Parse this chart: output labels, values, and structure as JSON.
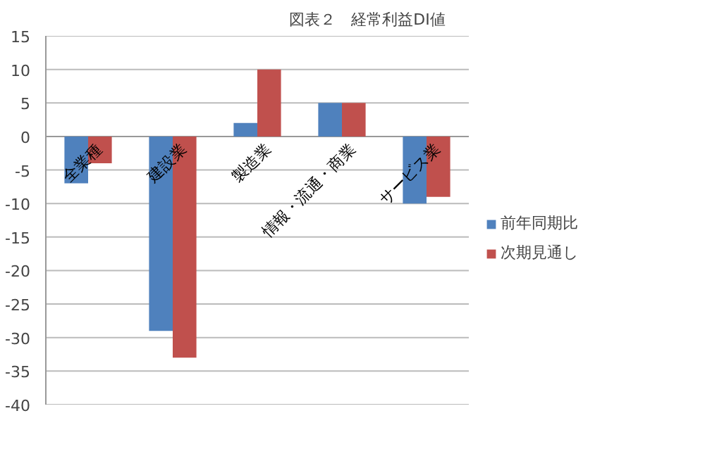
{
  "chart_data": {
    "type": "bar",
    "title": "図表２　経常利益DI値",
    "categories": [
      "全業種",
      "建設業",
      "製造業",
      "情報・流通・商業",
      "サービス業"
    ],
    "series": [
      {
        "name": "前年同期比",
        "color": "#4f81bd",
        "values": [
          -7,
          -29,
          2,
          5,
          -10
        ]
      },
      {
        "name": "次期見通し",
        "color": "#c0504d",
        "values": [
          -4,
          -33,
          10,
          5,
          -9
        ]
      }
    ],
    "ylim": [
      -40,
      15
    ],
    "yticks": [
      -40,
      -35,
      -30,
      -25,
      -20,
      -15,
      -10,
      -5,
      0,
      5,
      10,
      15
    ],
    "grid": "y",
    "legend": "right"
  }
}
